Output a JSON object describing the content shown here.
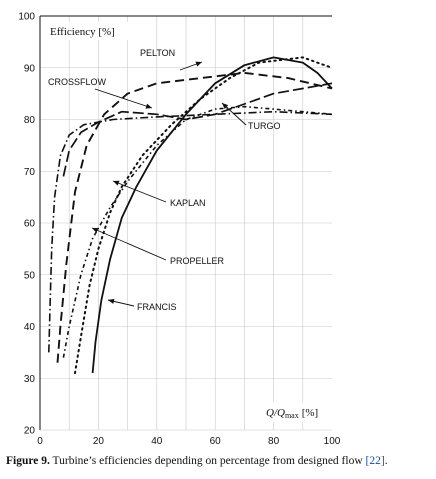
{
  "chart_data": {
    "type": "line",
    "ylabel": "Efficiency [%]",
    "xlabel_main": "Q/Q",
    "xlabel_sub": "max",
    "xlabel_unit": "[%]",
    "xlim": [
      0,
      100
    ],
    "ylim": [
      20,
      100
    ],
    "x_ticks": [
      0,
      20,
      40,
      60,
      80,
      100
    ],
    "y_ticks": [
      20,
      30,
      40,
      50,
      60,
      70,
      80,
      90,
      100
    ],
    "grid": true,
    "series": [
      {
        "name": "PELTON",
        "style": "dash",
        "x": [
          6,
          7,
          9,
          12,
          16,
          22,
          30,
          40,
          55,
          70,
          85,
          100
        ],
        "y": [
          33,
          40,
          52,
          66,
          75,
          81,
          85,
          87,
          88,
          89,
          88,
          86
        ]
      },
      {
        "name": "CROSSFLOW",
        "style": "dash-dot",
        "x": [
          3,
          3.5,
          4,
          5,
          7,
          10,
          15,
          25,
          40,
          60,
          80,
          100
        ],
        "y": [
          35,
          45,
          55,
          65,
          73,
          77,
          79,
          80,
          80.5,
          81,
          81.5,
          81
        ]
      },
      {
        "name": "TURGO",
        "style": "long-dash",
        "x": [
          8,
          10,
          14,
          20,
          28,
          40,
          50,
          60,
          70,
          80,
          90,
          100
        ],
        "y": [
          69,
          74,
          77.5,
          79.5,
          81.5,
          81,
          80,
          81,
          83,
          85,
          86,
          87
        ]
      },
      {
        "name": "KAPLAN",
        "style": "dot",
        "x": [
          12,
          14,
          17,
          20,
          24,
          28,
          35,
          45,
          55,
          65,
          75,
          90,
          100
        ],
        "y": [
          31,
          38,
          48,
          55,
          62,
          67,
          73,
          79,
          84,
          88,
          91,
          92,
          90
        ]
      },
      {
        "name": "PROPELLER",
        "style": "dash-dot-small",
        "x": [
          8,
          10,
          14,
          18,
          24,
          30,
          40,
          50,
          60,
          70,
          80,
          90,
          100
        ],
        "y": [
          34,
          40,
          50,
          57,
          63,
          68,
          75,
          80,
          82,
          82.5,
          82,
          81.5,
          81
        ]
      },
      {
        "name": "FRANCIS",
        "style": "solid",
        "x": [
          18,
          19,
          21,
          24,
          28,
          33,
          40,
          50,
          60,
          70,
          80,
          90,
          95,
          100
        ],
        "y": [
          31,
          37,
          45,
          53,
          61,
          67,
          74,
          81,
          87,
          90.5,
          92,
          91,
          89,
          86
        ]
      }
    ]
  },
  "caption": {
    "figure": "Figure 9.",
    "text": " Turbine’s efficiencies depending on percentage from designed flow ",
    "ref": "[22]",
    "end": "."
  }
}
